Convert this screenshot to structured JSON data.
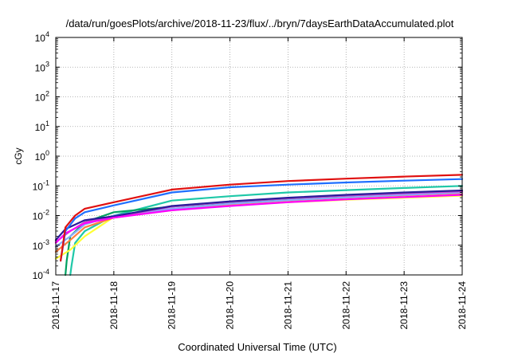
{
  "chart_data": {
    "type": "line",
    "title": "/data/run/goesPlots/archive/2018-11-23/flux/../bryn/7daysEarthDataAccumulated.plot",
    "xlabel": "Coordinated Universal Time (UTC)",
    "ylabel": "cGy",
    "y_scale": "log",
    "ylim": [
      0.0001,
      10000
    ],
    "y_ticks": [
      {
        "value": 0.0001,
        "base": "10",
        "exp": "-4"
      },
      {
        "value": 0.001,
        "base": "10",
        "exp": "-3"
      },
      {
        "value": 0.01,
        "base": "10",
        "exp": "-2"
      },
      {
        "value": 0.1,
        "base": "10",
        "exp": "-1"
      },
      {
        "value": 1,
        "base": "10",
        "exp": "0"
      },
      {
        "value": 10,
        "base": "10",
        "exp": "1"
      },
      {
        "value": 100,
        "base": "10",
        "exp": "2"
      },
      {
        "value": 1000,
        "base": "10",
        "exp": "3"
      },
      {
        "value": 10000,
        "base": "10",
        "exp": "4"
      }
    ],
    "x_ticks": [
      "2018-11-17",
      "2018-11-18",
      "2018-11-19",
      "2018-11-20",
      "2018-11-21",
      "2018-11-22",
      "2018-11-23",
      "2018-11-24"
    ],
    "xlim": [
      "2018-11-17",
      "2018-11-24"
    ],
    "grid": true,
    "legend": "none",
    "series": [
      {
        "color": "#1fc8a8",
        "x": [
          "2018-11-17T06:00",
          "2018-11-17T06:30",
          "2018-11-17T08:00",
          "2018-11-17T12:00",
          "2018-11-18",
          "2018-11-19",
          "2018-11-20",
          "2018-11-21",
          "2018-11-22",
          "2018-11-23",
          "2018-11-24"
        ],
        "y": [
          0.0001,
          0.0002,
          0.0012,
          0.003,
          0.01,
          0.032,
          0.045,
          0.06,
          0.072,
          0.085,
          0.1
        ]
      },
      {
        "color": "#00a060",
        "x": [
          "2018-11-17T04:00",
          "2018-11-17T04:30",
          "2018-11-17T06:00",
          "2018-11-17T12:00",
          "2018-11-18",
          "2018-11-19",
          "2018-11-20",
          "2018-11-21",
          "2018-11-22",
          "2018-11-23",
          "2018-11-24"
        ],
        "y": [
          0.0001,
          0.0003,
          0.002,
          0.006,
          0.013,
          0.02,
          0.028,
          0.037,
          0.046,
          0.056,
          0.066
        ]
      },
      {
        "color": "#ffff33",
        "x": [
          "2018-11-17",
          "2018-11-17T06:00",
          "2018-11-17T12:00",
          "2018-11-18",
          "2018-11-19",
          "2018-11-20",
          "2018-11-21",
          "2018-11-22",
          "2018-11-23",
          "2018-11-24"
        ],
        "y": [
          0.00035,
          0.0007,
          0.002,
          0.009,
          0.015,
          0.022,
          0.028,
          0.034,
          0.04,
          0.047
        ]
      },
      {
        "color": "#ff8040",
        "x": [
          "2018-11-17",
          "2018-11-17T06:00",
          "2018-11-17T12:00",
          "2018-11-18",
          "2018-11-19",
          "2018-11-20",
          "2018-11-21",
          "2018-11-22",
          "2018-11-23",
          "2018-11-24"
        ],
        "y": [
          0.0006,
          0.0015,
          0.004,
          0.0085,
          0.016,
          0.024,
          0.032,
          0.04,
          0.048,
          0.057
        ]
      },
      {
        "color": "#88aaff",
        "x": [
          "2018-11-17",
          "2018-11-17T06:00",
          "2018-11-17T12:00",
          "2018-11-18",
          "2018-11-19",
          "2018-11-20",
          "2018-11-21",
          "2018-11-22",
          "2018-11-23",
          "2018-11-24"
        ],
        "y": [
          0.0009,
          0.002,
          0.005,
          0.01,
          0.017,
          0.025,
          0.033,
          0.041,
          0.05,
          0.06
        ]
      },
      {
        "color": "#cc44cc",
        "x": [
          "2018-11-17",
          "2018-11-17T06:00",
          "2018-11-17T12:00",
          "2018-11-18",
          "2018-11-19",
          "2018-11-20",
          "2018-11-21",
          "2018-11-22",
          "2018-11-23",
          "2018-11-24"
        ],
        "y": [
          0.0013,
          0.003,
          0.006,
          0.009,
          0.02,
          0.029,
          0.038,
          0.047,
          0.056,
          0.065
        ]
      },
      {
        "color": "#2a1a9a",
        "x": [
          "2018-11-17",
          "2018-11-17T04:00",
          "2018-11-17T12:00",
          "2018-11-18",
          "2018-11-19",
          "2018-11-20",
          "2018-11-21",
          "2018-11-22",
          "2018-11-23",
          "2018-11-24"
        ],
        "y": [
          0.0015,
          0.0035,
          0.007,
          0.0095,
          0.021,
          0.03,
          0.04,
          0.05,
          0.06,
          0.07
        ]
      },
      {
        "color": "#ff00ff",
        "x": [
          "2018-11-17",
          "2018-11-17T04:00",
          "2018-11-17T12:00",
          "2018-11-18",
          "2018-11-19",
          "2018-11-20",
          "2018-11-21",
          "2018-11-22",
          "2018-11-23",
          "2018-11-24"
        ],
        "y": [
          0.0012,
          0.0025,
          0.0055,
          0.0085,
          0.015,
          0.021,
          0.028,
          0.035,
          0.042,
          0.05
        ]
      },
      {
        "color": "#1f6fff",
        "x": [
          "2018-11-17T02:00",
          "2018-11-17T04:00",
          "2018-11-17T08:00",
          "2018-11-17T12:00",
          "2018-11-18",
          "2018-11-19",
          "2018-11-20",
          "2018-11-21",
          "2018-11-22",
          "2018-11-23",
          "2018-11-24"
        ],
        "y": [
          0.0003,
          0.003,
          0.008,
          0.013,
          0.022,
          0.06,
          0.09,
          0.11,
          0.13,
          0.15,
          0.17
        ]
      },
      {
        "color": "#e01010",
        "x": [
          "2018-11-17T02:00",
          "2018-11-17T04:00",
          "2018-11-17T08:00",
          "2018-11-17T12:00",
          "2018-11-18",
          "2018-11-19",
          "2018-11-20",
          "2018-11-21",
          "2018-11-22",
          "2018-11-23",
          "2018-11-24"
        ],
        "y": [
          0.0003,
          0.004,
          0.01,
          0.017,
          0.028,
          0.075,
          0.11,
          0.145,
          0.175,
          0.205,
          0.235
        ]
      }
    ]
  }
}
